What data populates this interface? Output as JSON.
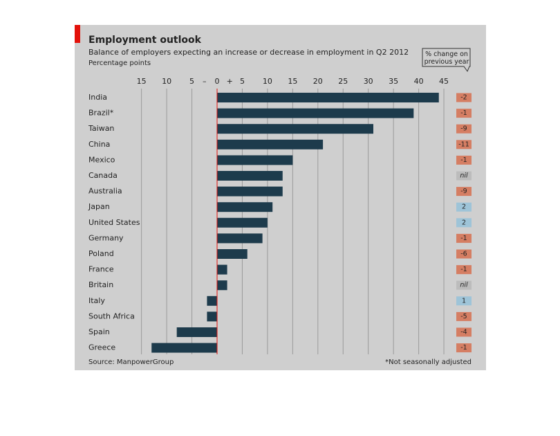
{
  "chart_data": {
    "type": "bar",
    "orientation": "horizontal",
    "title": "Employment outlook",
    "subtitle": "Balance of employers expecting an increase or decrease in employment in Q2 2012",
    "unit_label": "Percentage points",
    "minus_sign": "–",
    "plus_sign": "+",
    "categories": [
      "India",
      "Brazil*",
      "Taiwan",
      "China",
      "Mexico",
      "Canada",
      "Australia",
      "Japan",
      "United States",
      "Germany",
      "Poland",
      "France",
      "Britain",
      "Italy",
      "South Africa",
      "Spain",
      "Greece"
    ],
    "values": [
      44,
      39,
      31,
      21,
      15,
      13,
      13,
      11,
      10,
      9,
      6,
      2,
      2,
      -2,
      -2,
      -8,
      -13
    ],
    "color": "#1d3b4c",
    "xlim": [
      -15.5,
      46
    ],
    "xticks": [
      {
        "value": -15,
        "label": "15"
      },
      {
        "value": -10,
        "label": "10"
      },
      {
        "value": -5,
        "label": "5"
      },
      0,
      5,
      10,
      15,
      20,
      25,
      30,
      35,
      40,
      45
    ],
    "grid": true,
    "change_title": "% change on previous year",
    "change_values": [
      -2,
      -1,
      -9,
      -11,
      -1,
      null,
      -9,
      2,
      2,
      -1,
      -6,
      -1,
      null,
      1,
      -5,
      -4,
      -1
    ],
    "change_labels": [
      "-2",
      "-1",
      "-9",
      "-11",
      "-1",
      "nil",
      "-9",
      "2",
      "2",
      "-1",
      "-6",
      "-1",
      "nil",
      "1",
      "-5",
      "-4",
      "-1"
    ],
    "change_colors": {
      "negative": "#d57e63",
      "positive": "#9ec4d8",
      "nil": "#bcbcbc"
    },
    "source": "Source: ManpowerGroup",
    "note": "*Not seasonally adjusted"
  }
}
